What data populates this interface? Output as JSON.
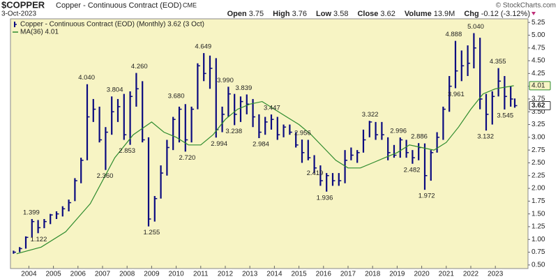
{
  "chart_data": {
    "type": "ohlc",
    "symbol": "$COPPER",
    "title": "Copper - Continuous Contract (EOD)",
    "exchange": "CME",
    "date": "3-Oct-2023",
    "credit": "© StockCharts.com",
    "quote": [
      {
        "label": "Open",
        "value": 3.75
      },
      {
        "label": "High",
        "value": 3.76
      },
      {
        "label": "Low",
        "value": 3.58
      },
      {
        "label": "Close",
        "value": 3.62
      },
      {
        "label": "Volume",
        "value": 13900000,
        "value_label": "13.9M"
      },
      {
        "label": "Chg",
        "value": -0.12,
        "pct": -3.12,
        "pct_label": "(-3.12%)"
      }
    ],
    "xlim": [
      2003.25,
      2024.33
    ],
    "xticks": [
      2004,
      2005,
      2006,
      2007,
      2008,
      2009,
      2010,
      2011,
      2012,
      2013,
      2014,
      2015,
      2016,
      2017,
      2018,
      2019,
      2020,
      2021,
      2022,
      2023
    ],
    "ylim": [
      0.43,
      5.32
    ],
    "yticks": [
      {
        "value": 0.5,
        "label": "0.50"
      },
      {
        "value": 0.75,
        "label": "0.75"
      },
      {
        "value": 1.0,
        "label": "1.00"
      },
      {
        "value": 1.25,
        "label": "1.25"
      },
      {
        "value": 1.5,
        "label": "1.50"
      },
      {
        "value": 1.75,
        "label": "1.75"
      },
      {
        "value": 2.0,
        "label": "2.00"
      },
      {
        "value": 2.25,
        "label": "2.25"
      },
      {
        "value": 2.5,
        "label": "2.50"
      },
      {
        "value": 2.75,
        "label": "2.75"
      },
      {
        "value": 3.0,
        "label": "3.00"
      },
      {
        "value": 3.25,
        "label": "3.25"
      },
      {
        "value": 3.5,
        "label": "3.50"
      },
      {
        "value": 3.75,
        "label": "3.75"
      },
      {
        "value": 4.0,
        "label": "4.00"
      },
      {
        "value": 4.25,
        "label": "4.25"
      },
      {
        "value": 4.5,
        "label": "4.50"
      },
      {
        "value": 4.75,
        "label": "4.75"
      },
      {
        "value": 5.0,
        "label": "5.00"
      },
      {
        "value": 5.25,
        "label": "5.25"
      }
    ],
    "series": [
      {
        "name": "Copper - Continuous Contract (EOD) (Monthly) 3.62 (3 Oct)",
        "color": "#0a0a80",
        "last": 3.62,
        "x": [
          2003.375,
          2003.625,
          2003.875,
          2004.125,
          2004.375,
          2004.625,
          2004.875,
          2005.125,
          2005.375,
          2005.625,
          2005.875,
          2006.125,
          2006.375,
          2006.625,
          2006.875,
          2007.125,
          2007.375,
          2007.625,
          2007.875,
          2008.125,
          2008.375,
          2008.625,
          2008.875,
          2009.125,
          2009.375,
          2009.625,
          2009.875,
          2010.125,
          2010.375,
          2010.625,
          2010.875,
          2011.125,
          2011.375,
          2011.625,
          2011.875,
          2012.125,
          2012.375,
          2012.625,
          2012.875,
          2013.125,
          2013.375,
          2013.625,
          2013.875,
          2014.125,
          2014.375,
          2014.625,
          2014.875,
          2015.125,
          2015.375,
          2015.625,
          2015.875,
          2016.125,
          2016.375,
          2016.625,
          2016.875,
          2017.125,
          2017.375,
          2017.625,
          2017.875,
          2018.125,
          2018.375,
          2018.625,
          2018.875,
          2019.125,
          2019.375,
          2019.625,
          2019.875,
          2020.125,
          2020.375,
          2020.625,
          2020.875,
          2021.125,
          2021.375,
          2021.625,
          2021.875,
          2022.125,
          2022.375,
          2022.625,
          2022.875,
          2023.125,
          2023.375,
          2023.625,
          2023.79
        ],
        "high": [
          0.78,
          0.85,
          1.06,
          1.4,
          1.38,
          1.4,
          1.5,
          1.55,
          1.65,
          1.78,
          2.2,
          2.6,
          4.04,
          3.75,
          3.6,
          3.2,
          3.8,
          3.75,
          3.85,
          3.9,
          4.26,
          4.1,
          3.0,
          1.85,
          2.45,
          2.95,
          3.4,
          3.6,
          3.65,
          3.6,
          4.45,
          4.649,
          4.6,
          4.55,
          3.6,
          3.99,
          3.85,
          3.8,
          3.839,
          3.75,
          3.45,
          3.4,
          3.447,
          3.4,
          3.25,
          3.25,
          3.1,
          2.956,
          2.95,
          2.65,
          2.45,
          2.3,
          2.3,
          2.3,
          2.75,
          2.8,
          2.75,
          3.15,
          3.322,
          3.3,
          3.3,
          3.0,
          2.85,
          2.996,
          2.95,
          2.75,
          2.886,
          2.88,
          2.75,
          3.1,
          3.6,
          4.2,
          4.888,
          4.7,
          4.8,
          5.04,
          4.95,
          3.85,
          3.9,
          4.355,
          4.2,
          4.0,
          3.76
        ],
        "low": [
          0.72,
          0.75,
          0.82,
          1.04,
          1.122,
          1.22,
          1.3,
          1.4,
          1.45,
          1.55,
          1.75,
          2.1,
          2.55,
          3.3,
          2.9,
          2.36,
          3.05,
          3.3,
          2.95,
          2.853,
          3.6,
          2.9,
          1.255,
          1.35,
          1.8,
          2.25,
          2.75,
          2.9,
          2.72,
          2.9,
          3.55,
          4.1,
          3.95,
          2.994,
          3.1,
          3.4,
          3.238,
          3.3,
          3.45,
          3.2,
          2.984,
          3.05,
          3.15,
          2.95,
          3.0,
          3.05,
          2.8,
          2.5,
          2.55,
          2.3,
          2.05,
          1.936,
          2.05,
          2.05,
          2.1,
          2.55,
          2.5,
          2.7,
          3.0,
          2.95,
          2.95,
          2.55,
          2.6,
          2.6,
          2.6,
          2.482,
          2.55,
          1.972,
          2.15,
          2.7,
          2.95,
          3.5,
          3.961,
          4.1,
          4.2,
          4.35,
          3.55,
          3.132,
          3.25,
          3.8,
          3.545,
          3.6,
          3.58
        ],
        "values": [
          0.75,
          0.82,
          1.04,
          1.35,
          1.23,
          1.35,
          1.48,
          1.5,
          1.6,
          1.72,
          2.15,
          2.55,
          3.4,
          3.55,
          2.95,
          3.1,
          3.5,
          3.6,
          3.05,
          3.8,
          3.95,
          2.95,
          1.4,
          1.8,
          2.3,
          2.8,
          3.35,
          3.55,
          2.95,
          3.55,
          4.4,
          4.25,
          4.35,
          3.15,
          3.45,
          3.85,
          3.45,
          3.7,
          3.65,
          3.4,
          3.1,
          3.3,
          3.35,
          3.05,
          3.2,
          3.1,
          2.85,
          2.7,
          2.6,
          2.4,
          2.15,
          2.25,
          2.15,
          2.15,
          2.55,
          2.65,
          2.7,
          2.95,
          3.3,
          3.05,
          3.05,
          2.7,
          2.65,
          2.95,
          2.7,
          2.6,
          2.8,
          2.25,
          2.7,
          3.0,
          3.55,
          4.0,
          4.3,
          4.4,
          4.45,
          4.75,
          3.75,
          3.45,
          3.8,
          4.1,
          3.8,
          3.75,
          3.62
        ]
      },
      {
        "name": "MA(36) 4.01",
        "color": "#2e8b2e",
        "last": 4.01,
        "x": [
          2003.5,
          2004.5,
          2005.5,
          2006.5,
          2007.5,
          2008.25,
          2009.0,
          2009.5,
          2010.0,
          2010.5,
          2011.0,
          2011.5,
          2012.0,
          2012.5,
          2013.0,
          2013.5,
          2014.0,
          2014.5,
          2015.0,
          2015.5,
          2016.0,
          2016.5,
          2017.0,
          2017.5,
          2018.0,
          2018.5,
          2019.0,
          2019.5,
          2020.0,
          2020.5,
          2021.0,
          2021.5,
          2022.0,
          2022.5,
          2023.0,
          2023.75
        ],
        "values": [
          0.72,
          0.85,
          1.15,
          1.7,
          2.6,
          3.05,
          3.3,
          3.1,
          3.0,
          2.85,
          2.85,
          3.05,
          3.35,
          3.55,
          3.65,
          3.7,
          3.55,
          3.4,
          3.25,
          3.05,
          2.8,
          2.55,
          2.4,
          2.4,
          2.5,
          2.6,
          2.7,
          2.85,
          2.8,
          2.75,
          2.9,
          3.2,
          3.55,
          3.85,
          3.95,
          4.01
        ]
      }
    ],
    "annotations": [
      {
        "x": 2004.1,
        "value": 1.399,
        "label": "1.399",
        "position": "above"
      },
      {
        "x": 2004.4,
        "value": 1.122,
        "label": "1.122",
        "position": "below"
      },
      {
        "x": 2006.35,
        "value": 4.04,
        "label": "4.040",
        "position": "above"
      },
      {
        "x": 2007.1,
        "value": 2.36,
        "label": "2.360",
        "position": "below"
      },
      {
        "x": 2007.5,
        "value": 3.804,
        "label": "3.804",
        "position": "above"
      },
      {
        "x": 2008.0,
        "value": 2.853,
        "label": "2.853",
        "position": "below"
      },
      {
        "x": 2008.5,
        "value": 4.26,
        "label": "4.260",
        "position": "above"
      },
      {
        "x": 2009.0,
        "value": 1.255,
        "label": "1.255",
        "position": "below"
      },
      {
        "x": 2010.0,
        "value": 3.68,
        "label": "3.680",
        "position": "above"
      },
      {
        "x": 2010.45,
        "value": 2.72,
        "label": "2.720",
        "position": "below"
      },
      {
        "x": 2011.1,
        "value": 4.649,
        "label": "4.649",
        "position": "above"
      },
      {
        "x": 2011.75,
        "value": 2.994,
        "label": "2.994",
        "position": "below"
      },
      {
        "x": 2012.0,
        "value": 3.99,
        "label": "3.990",
        "position": "above"
      },
      {
        "x": 2012.35,
        "value": 3.238,
        "label": "3.238",
        "position": "below"
      },
      {
        "x": 2012.75,
        "value": 3.839,
        "label": "3.839",
        "position": "above"
      },
      {
        "x": 2013.45,
        "value": 2.984,
        "label": "2.984",
        "position": "below"
      },
      {
        "x": 2013.9,
        "value": 3.447,
        "label": "3.447",
        "position": "above"
      },
      {
        "x": 2015.15,
        "value": 2.956,
        "label": "2.956",
        "position": "above"
      },
      {
        "x": 2015.65,
        "value": 2.419,
        "label": "2.419",
        "position": "below"
      },
      {
        "x": 2016.05,
        "value": 1.936,
        "label": "1.936",
        "position": "below"
      },
      {
        "x": 2017.9,
        "value": 3.322,
        "label": "3.322",
        "position": "above"
      },
      {
        "x": 2019.05,
        "value": 2.996,
        "label": "2.996",
        "position": "above"
      },
      {
        "x": 2019.6,
        "value": 2.482,
        "label": "2.482",
        "position": "below"
      },
      {
        "x": 2019.9,
        "value": 2.886,
        "label": "2.886",
        "position": "above"
      },
      {
        "x": 2020.2,
        "value": 1.972,
        "label": "1.972",
        "position": "below"
      },
      {
        "x": 2021.3,
        "value": 4.888,
        "label": "4.888",
        "position": "above"
      },
      {
        "x": 2021.4,
        "value": 3.961,
        "label": "3.961",
        "position": "below"
      },
      {
        "x": 2022.2,
        "value": 5.04,
        "label": "5.040",
        "position": "above"
      },
      {
        "x": 2022.6,
        "value": 3.132,
        "label": "3.132",
        "position": "below"
      },
      {
        "x": 2023.1,
        "value": 4.355,
        "label": "4.355",
        "position": "above"
      },
      {
        "x": 2023.4,
        "value": 3.545,
        "label": "3.545",
        "position": "below"
      }
    ]
  }
}
